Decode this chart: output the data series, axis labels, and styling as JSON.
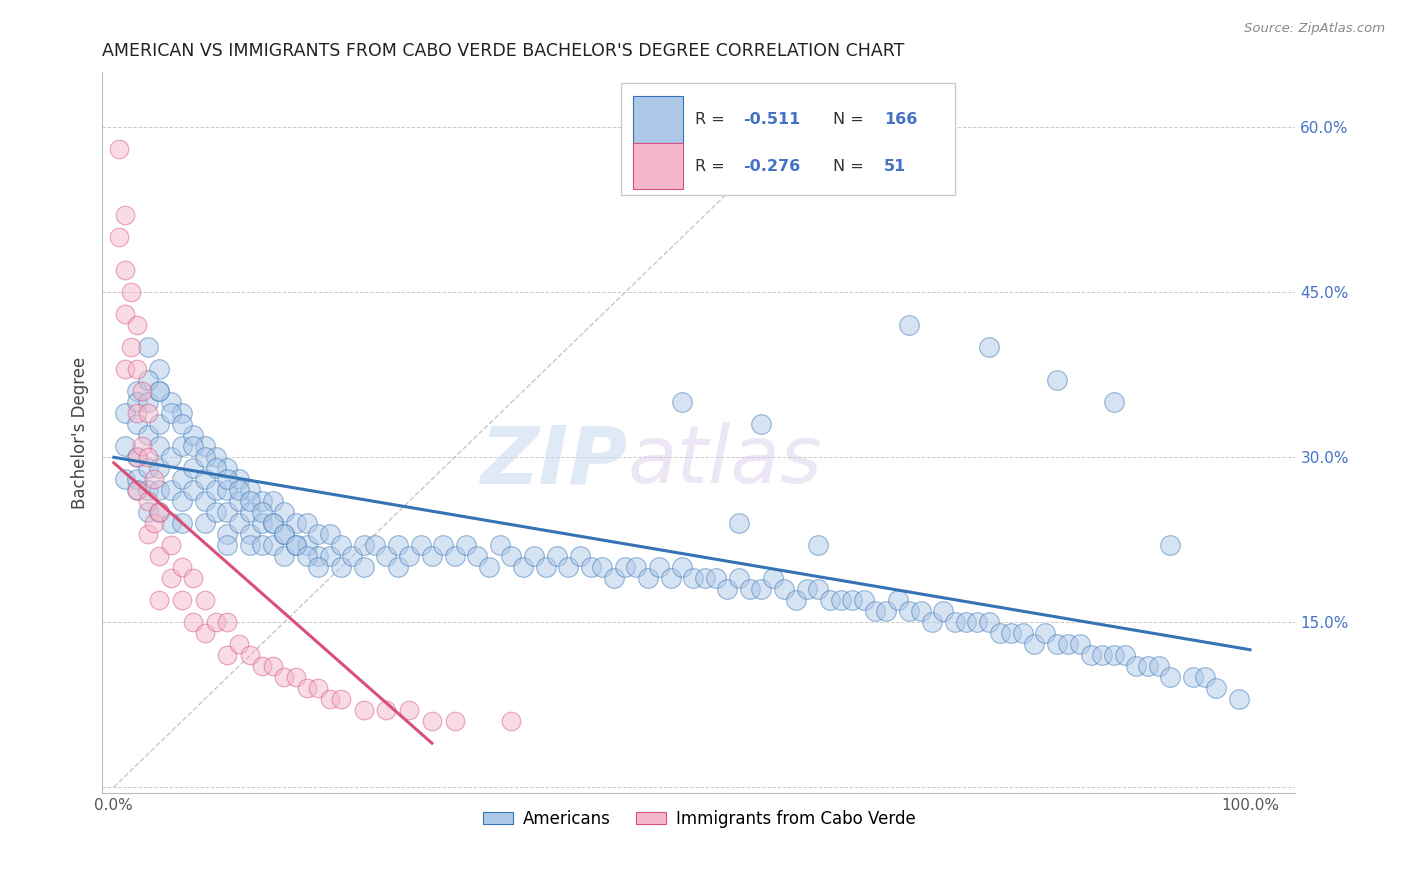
{
  "title": "AMERICAN VS IMMIGRANTS FROM CABO VERDE BACHELOR'S DEGREE CORRELATION CHART",
  "source": "Source: ZipAtlas.com",
  "ylabel": "Bachelor's Degree",
  "legend_blue_r": "-0.511",
  "legend_blue_n": "166",
  "legend_pink_r": "-0.276",
  "legend_pink_n": "51",
  "blue_color": "#aec8e8",
  "pink_color": "#f4b8ca",
  "blue_line_color": "#3473b5",
  "pink_line_color": "#d94f7a",
  "diagonal_color": "#c8c8c8",
  "watermark_zip": "ZIP",
  "watermark_atlas": "atlas",
  "xlim": [
    -0.01,
    1.04
  ],
  "ylim": [
    -0.005,
    0.65
  ],
  "x_ticks": [
    0.0,
    0.2,
    0.4,
    0.6,
    0.8,
    1.0
  ],
  "x_tick_labels": [
    "0.0%",
    "",
    "",
    "",
    "",
    "100.0%"
  ],
  "y_ticks": [
    0.0,
    0.15,
    0.3,
    0.45,
    0.6
  ],
  "y_tick_labels_right": [
    "",
    "15.0%",
    "30.0%",
    "45.0%",
    "60.0%"
  ],
  "blue_line_x": [
    0.0,
    1.0
  ],
  "blue_line_y": [
    0.3,
    0.125
  ],
  "pink_line_x": [
    0.0,
    0.28
  ],
  "pink_line_y": [
    0.295,
    0.04
  ],
  "diag_line_x": [
    0.0,
    0.63
  ],
  "diag_line_y": [
    0.0,
    0.63
  ],
  "blue_scatter_x": [
    0.01,
    0.01,
    0.01,
    0.02,
    0.02,
    0.02,
    0.02,
    0.02,
    0.02,
    0.03,
    0.03,
    0.03,
    0.03,
    0.03,
    0.04,
    0.04,
    0.04,
    0.04,
    0.04,
    0.04,
    0.04,
    0.05,
    0.05,
    0.05,
    0.05,
    0.06,
    0.06,
    0.06,
    0.06,
    0.06,
    0.07,
    0.07,
    0.07,
    0.08,
    0.08,
    0.08,
    0.08,
    0.09,
    0.09,
    0.09,
    0.1,
    0.1,
    0.1,
    0.1,
    0.1,
    0.11,
    0.11,
    0.11,
    0.12,
    0.12,
    0.12,
    0.12,
    0.13,
    0.13,
    0.13,
    0.14,
    0.14,
    0.14,
    0.15,
    0.15,
    0.15,
    0.16,
    0.16,
    0.17,
    0.17,
    0.18,
    0.18,
    0.19,
    0.19,
    0.2,
    0.2,
    0.21,
    0.22,
    0.22,
    0.23,
    0.24,
    0.25,
    0.25,
    0.26,
    0.27,
    0.28,
    0.29,
    0.3,
    0.31,
    0.32,
    0.33,
    0.34,
    0.35,
    0.36,
    0.37,
    0.38,
    0.39,
    0.4,
    0.41,
    0.42,
    0.43,
    0.44,
    0.45,
    0.46,
    0.47,
    0.48,
    0.49,
    0.5,
    0.51,
    0.52,
    0.53,
    0.54,
    0.55,
    0.56,
    0.57,
    0.58,
    0.59,
    0.6,
    0.61,
    0.62,
    0.63,
    0.64,
    0.65,
    0.66,
    0.67,
    0.68,
    0.69,
    0.7,
    0.71,
    0.72,
    0.73,
    0.74,
    0.75,
    0.76,
    0.77,
    0.78,
    0.79,
    0.8,
    0.81,
    0.82,
    0.83,
    0.84,
    0.85,
    0.86,
    0.87,
    0.88,
    0.89,
    0.9,
    0.91,
    0.92,
    0.93,
    0.95,
    0.96,
    0.97,
    0.99,
    0.03,
    0.03,
    0.04,
    0.05,
    0.06,
    0.07,
    0.08,
    0.09,
    0.1,
    0.11,
    0.12,
    0.13,
    0.14,
    0.15,
    0.16,
    0.17,
    0.18,
    0.55,
    0.62,
    0.7,
    0.77,
    0.83,
    0.88,
    0.93,
    0.5,
    0.57
  ],
  "blue_scatter_y": [
    0.34,
    0.31,
    0.28,
    0.36,
    0.33,
    0.3,
    0.28,
    0.35,
    0.27,
    0.35,
    0.32,
    0.29,
    0.27,
    0.25,
    0.38,
    0.36,
    0.33,
    0.31,
    0.29,
    0.27,
    0.25,
    0.35,
    0.3,
    0.27,
    0.24,
    0.34,
    0.31,
    0.28,
    0.26,
    0.24,
    0.32,
    0.29,
    0.27,
    0.31,
    0.28,
    0.26,
    0.24,
    0.3,
    0.27,
    0.25,
    0.29,
    0.27,
    0.25,
    0.23,
    0.22,
    0.28,
    0.26,
    0.24,
    0.27,
    0.25,
    0.23,
    0.22,
    0.26,
    0.24,
    0.22,
    0.26,
    0.24,
    0.22,
    0.25,
    0.23,
    0.21,
    0.24,
    0.22,
    0.24,
    0.22,
    0.23,
    0.21,
    0.23,
    0.21,
    0.22,
    0.2,
    0.21,
    0.22,
    0.2,
    0.22,
    0.21,
    0.22,
    0.2,
    0.21,
    0.22,
    0.21,
    0.22,
    0.21,
    0.22,
    0.21,
    0.2,
    0.22,
    0.21,
    0.2,
    0.21,
    0.2,
    0.21,
    0.2,
    0.21,
    0.2,
    0.2,
    0.19,
    0.2,
    0.2,
    0.19,
    0.2,
    0.19,
    0.2,
    0.19,
    0.19,
    0.19,
    0.18,
    0.19,
    0.18,
    0.18,
    0.19,
    0.18,
    0.17,
    0.18,
    0.18,
    0.17,
    0.17,
    0.17,
    0.17,
    0.16,
    0.16,
    0.17,
    0.16,
    0.16,
    0.15,
    0.16,
    0.15,
    0.15,
    0.15,
    0.15,
    0.14,
    0.14,
    0.14,
    0.13,
    0.14,
    0.13,
    0.13,
    0.13,
    0.12,
    0.12,
    0.12,
    0.12,
    0.11,
    0.11,
    0.11,
    0.1,
    0.1,
    0.1,
    0.09,
    0.08,
    0.4,
    0.37,
    0.36,
    0.34,
    0.33,
    0.31,
    0.3,
    0.29,
    0.28,
    0.27,
    0.26,
    0.25,
    0.24,
    0.23,
    0.22,
    0.21,
    0.2,
    0.24,
    0.22,
    0.42,
    0.4,
    0.37,
    0.35,
    0.22,
    0.35,
    0.33
  ],
  "pink_scatter_x": [
    0.005,
    0.005,
    0.01,
    0.01,
    0.01,
    0.01,
    0.015,
    0.015,
    0.02,
    0.02,
    0.02,
    0.02,
    0.02,
    0.025,
    0.025,
    0.03,
    0.03,
    0.03,
    0.03,
    0.035,
    0.035,
    0.04,
    0.04,
    0.04,
    0.05,
    0.05,
    0.06,
    0.06,
    0.07,
    0.07,
    0.08,
    0.08,
    0.09,
    0.1,
    0.1,
    0.11,
    0.12,
    0.13,
    0.14,
    0.15,
    0.16,
    0.17,
    0.18,
    0.19,
    0.2,
    0.22,
    0.24,
    0.26,
    0.28,
    0.3,
    0.35
  ],
  "pink_scatter_y": [
    0.58,
    0.5,
    0.52,
    0.47,
    0.43,
    0.38,
    0.45,
    0.4,
    0.42,
    0.38,
    0.34,
    0.3,
    0.27,
    0.36,
    0.31,
    0.34,
    0.3,
    0.26,
    0.23,
    0.28,
    0.24,
    0.25,
    0.21,
    0.17,
    0.22,
    0.19,
    0.2,
    0.17,
    0.19,
    0.15,
    0.17,
    0.14,
    0.15,
    0.15,
    0.12,
    0.13,
    0.12,
    0.11,
    0.11,
    0.1,
    0.1,
    0.09,
    0.09,
    0.08,
    0.08,
    0.07,
    0.07,
    0.07,
    0.06,
    0.06,
    0.06
  ]
}
